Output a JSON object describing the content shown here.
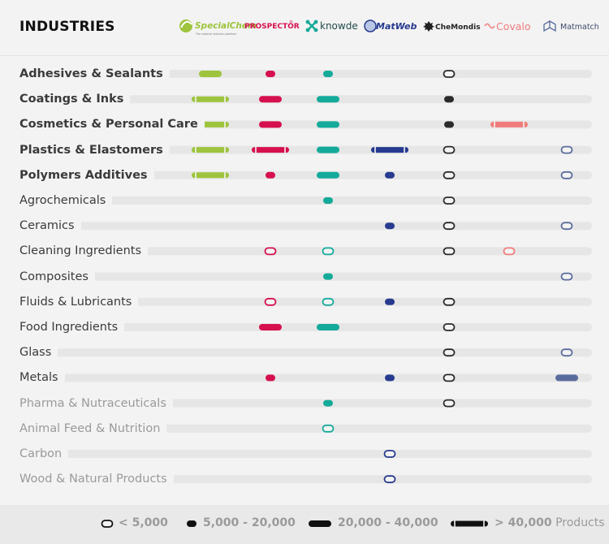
{
  "header": {
    "title": "INDUSTRIES"
  },
  "colors": {
    "background": "#f3f3f3",
    "track": "#e6e6e6",
    "specialchem": "#9dc43c",
    "prospector": "#d6104e",
    "knowde": "#14aa9a",
    "matweb": "#263a8f",
    "chemondis": "#2b2b2b",
    "covalo": "#f07c7b",
    "matmatch": "#596c9c"
  },
  "chart_data": {
    "type": "table",
    "columns": [
      {
        "key": "specialchem_prospector",
        "name": "SpecialChem PROSPECTOR",
        "color": "#9dc43c"
      },
      {
        "key": "prospector",
        "name": "PROSPECTOR",
        "color": "#d6104e"
      },
      {
        "key": "knowde",
        "name": "knowde",
        "color": "#14aa9a"
      },
      {
        "key": "matweb",
        "name": "MatWeb",
        "color": "#263a8f"
      },
      {
        "key": "chemondis",
        "name": "CheMondis",
        "color": "#2b2b2b"
      },
      {
        "key": "covalo",
        "name": "Covalo",
        "color": "#f07c7b"
      },
      {
        "key": "matmatch",
        "name": "Matmatch",
        "color": "#596c9c"
      }
    ],
    "logos": {
      "specialchem": "SpecialChem",
      "specialchem_tagline": "The material selection platform",
      "prospector": "PROSPECTOR",
      "knowde": "knowde",
      "matweb": "MatWeb",
      "chemondis": "CheMondis",
      "covalo": "Covalo",
      "matmatch": "Matmatch"
    },
    "levels": {
      "0": "none",
      "1": "< 5,000",
      "2": "5,000 - 20,000",
      "3": "20,000 - 40,000",
      "4": "> 40,000"
    },
    "rows": [
      {
        "label": "Adhesives & Sealants",
        "style": "bold",
        "values": [
          3,
          2,
          2,
          0,
          1,
          0,
          0
        ]
      },
      {
        "label": "Coatings & Inks",
        "style": "bold",
        "values": [
          4,
          3,
          3,
          0,
          2,
          0,
          0
        ]
      },
      {
        "label": "Cosmetics & Personal Care",
        "style": "bold",
        "values": [
          4,
          3,
          3,
          0,
          2,
          4,
          0
        ]
      },
      {
        "label": "Plastics & Elastomers",
        "style": "bold",
        "values": [
          4,
          4,
          3,
          4,
          1,
          0,
          1
        ]
      },
      {
        "label": "Polymers Additives",
        "style": "bold",
        "values": [
          4,
          2,
          3,
          2,
          1,
          0,
          1
        ]
      },
      {
        "label": "Agrochemicals",
        "style": "normal",
        "values": [
          0,
          0,
          2,
          0,
          1,
          0,
          0
        ]
      },
      {
        "label": "Ceramics",
        "style": "normal",
        "values": [
          0,
          0,
          0,
          2,
          1,
          0,
          1
        ]
      },
      {
        "label": "Cleaning Ingredients",
        "style": "normal",
        "values": [
          0,
          1,
          1,
          0,
          1,
          1,
          0
        ]
      },
      {
        "label": "Composites",
        "style": "normal",
        "values": [
          0,
          0,
          2,
          0,
          0,
          0,
          1
        ]
      },
      {
        "label": "Fluids & Lubricants",
        "style": "normal",
        "values": [
          0,
          1,
          1,
          2,
          1,
          0,
          0
        ]
      },
      {
        "label": "Food Ingredients",
        "style": "normal",
        "values": [
          0,
          3,
          3,
          0,
          1,
          0,
          0
        ]
      },
      {
        "label": "Glass",
        "style": "normal",
        "values": [
          0,
          0,
          0,
          0,
          1,
          0,
          1
        ]
      },
      {
        "label": "Metals",
        "style": "normal",
        "values": [
          0,
          2,
          0,
          2,
          1,
          0,
          3
        ]
      },
      {
        "label": "Pharma & Nutraceuticals",
        "style": "muted",
        "values": [
          0,
          0,
          2,
          0,
          1,
          0,
          0
        ]
      },
      {
        "label": "Animal Feed & Nutrition",
        "style": "muted",
        "values": [
          0,
          0,
          1,
          0,
          0,
          0,
          0
        ]
      },
      {
        "label": "Carbon",
        "style": "muted",
        "values": [
          0,
          0,
          0,
          1,
          0,
          0,
          0
        ]
      },
      {
        "label": "Wood & Natural Products",
        "style": "muted",
        "values": [
          0,
          0,
          0,
          1,
          0,
          0,
          0
        ]
      }
    ],
    "legend": [
      {
        "level": 1,
        "text": "< 5,000"
      },
      {
        "level": 2,
        "text": "5,000 - 20,000"
      },
      {
        "level": 3,
        "text": "20,000 - 40,000"
      },
      {
        "level": 4,
        "text": "> 40,000",
        "suffix": "Products"
      }
    ]
  }
}
